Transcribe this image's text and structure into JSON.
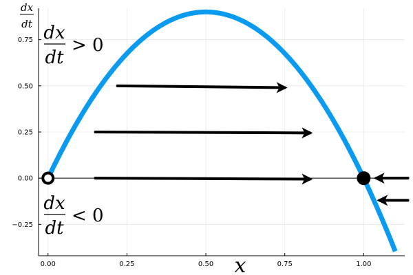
{
  "chart_data": {
    "type": "line",
    "xlabel": "x",
    "ylabel_top": "dx",
    "ylabel_bottom": "dt",
    "xlim": [
      -0.03,
      1.13
    ],
    "ylim": [
      -0.42,
      0.92
    ],
    "x_ticks": [
      0.0,
      0.25,
      0.5,
      0.75,
      1.0
    ],
    "x_tick_labels": [
      "0.00",
      "0.25",
      "0.50",
      "0.75",
      "1.00"
    ],
    "y_ticks": [
      -0.25,
      0.0,
      0.25,
      0.5,
      0.75
    ],
    "y_tick_labels": [
      "−0.25",
      "0.00",
      "0.25",
      "0.50",
      "0.75"
    ],
    "grid": true,
    "curve": {
      "x": [
        0.0,
        0.05,
        0.1,
        0.15,
        0.2,
        0.25,
        0.3,
        0.35,
        0.4,
        0.45,
        0.5,
        0.55,
        0.6,
        0.65,
        0.7,
        0.75,
        0.8,
        0.85,
        0.9,
        0.95,
        1.0,
        1.05,
        1.1
      ],
      "y": [
        0.0,
        0.19,
        0.36,
        0.51,
        0.64,
        0.75,
        0.84,
        0.91,
        0.96,
        0.99,
        1.0,
        0.99,
        0.96,
        0.91,
        0.84,
        0.75,
        0.64,
        0.51,
        0.36,
        0.19,
        0.0,
        -0.21,
        -0.44
      ],
      "scale": 0.9,
      "color": "#0a9bf0"
    },
    "equilibria": [
      {
        "x": 0.0,
        "y": 0.0,
        "stability": "unstable"
      },
      {
        "x": 1.0,
        "y": 0.0,
        "stability": "stable"
      }
    ],
    "arrows": [
      {
        "x1": 0.22,
        "y1": 0.5,
        "x2": 0.75,
        "y2": 0.49
      },
      {
        "x1": 0.15,
        "y1": 0.25,
        "x2": 0.83,
        "y2": 0.245
      },
      {
        "x1": 0.15,
        "y1": 0.0,
        "x2": 0.83,
        "y2": -0.005
      },
      {
        "x1": 1.14,
        "y1": 0.0,
        "x2": 1.04,
        "y2": 0.0
      },
      {
        "x1": 1.14,
        "y1": -0.12,
        "x2": 1.05,
        "y2": -0.12
      }
    ],
    "annotations": [
      {
        "numerator": "dx",
        "denominator": "dt",
        "relation": "> 0"
      },
      {
        "numerator": "dx",
        "denominator": "dt",
        "relation": "< 0"
      }
    ]
  }
}
